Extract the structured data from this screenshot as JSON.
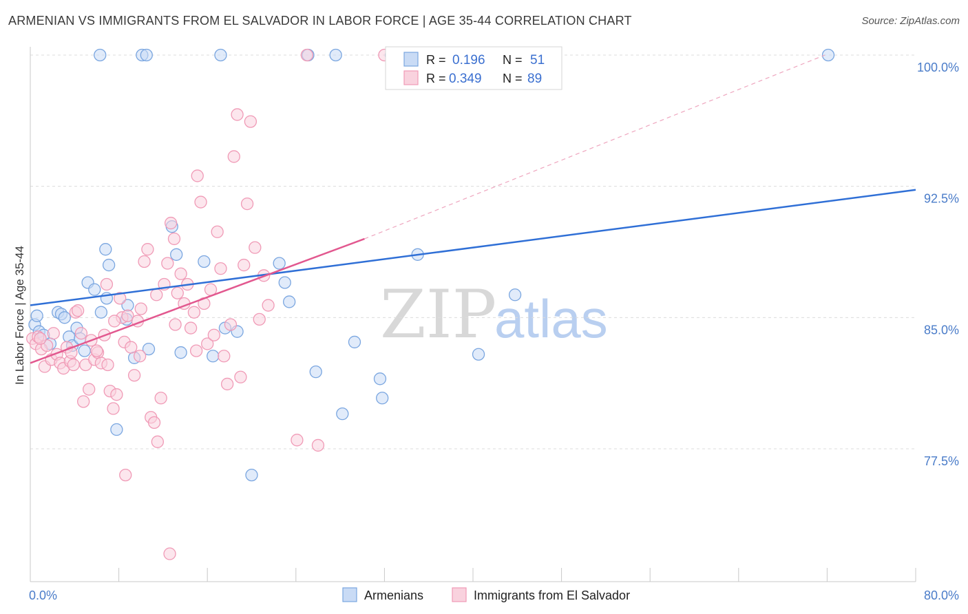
{
  "title": "ARMENIAN VS IMMIGRANTS FROM EL SALVADOR IN LABOR FORCE | AGE 35-44 CORRELATION CHART",
  "source": "Source: ZipAtlas.com",
  "watermark": {
    "zip": "ZIP",
    "atlas": "atlas"
  },
  "legend": {
    "rows": [
      {
        "r_label": "R =",
        "r_value": "0.196",
        "n_label": "N =",
        "n_value": "51"
      },
      {
        "r_label": "R =",
        "r_value": "0.349",
        "n_label": "N =",
        "n_value": "89"
      }
    ]
  },
  "bottom_legend": {
    "series1": "Armenians",
    "series2": "Immigrants from El Salvador"
  },
  "chart_data": {
    "type": "scatter",
    "title": "ARMENIAN VS IMMIGRANTS FROM EL SALVADOR IN LABOR FORCE | AGE 35-44 CORRELATION CHART",
    "xlabel": "",
    "ylabel": "In Labor Force | Age 35-44",
    "xlim": [
      0,
      80
    ],
    "ylim": [
      70.0,
      100.6
    ],
    "x_ticks": [
      "0.0%",
      "80.0%"
    ],
    "y_ticks": [
      {
        "value": 100.0,
        "label": "100.0%"
      },
      {
        "value": 92.5,
        "label": "92.5%"
      },
      {
        "value": 85.0,
        "label": "85.0%"
      },
      {
        "value": 77.5,
        "label": "77.5%"
      }
    ],
    "grid": "horizontal dashed",
    "legend_placement": "top-center",
    "series": [
      {
        "name": "Armenians",
        "color": "#7aa6e0",
        "fill": "#c9dbf5",
        "trend": {
          "x": [
            0,
            80
          ],
          "y": [
            85.7,
            92.3
          ],
          "color": "#2f6fd6"
        },
        "points": [
          [
            0.4,
            84.6
          ],
          [
            0.6,
            85.1
          ],
          [
            0.8,
            84.2
          ],
          [
            1.2,
            84.0
          ],
          [
            1.8,
            83.5
          ],
          [
            2.5,
            85.3
          ],
          [
            2.8,
            85.2
          ],
          [
            3.1,
            85.0
          ],
          [
            3.5,
            83.9
          ],
          [
            3.8,
            83.4
          ],
          [
            4.2,
            84.4
          ],
          [
            4.5,
            83.8
          ],
          [
            4.9,
            83.1
          ],
          [
            5.2,
            87.0
          ],
          [
            5.8,
            86.6
          ],
          [
            6.4,
            85.3
          ],
          [
            6.9,
            86.1
          ],
          [
            7.1,
            88.0
          ],
          [
            8.7,
            84.9
          ],
          [
            8.8,
            85.7
          ],
          [
            9.4,
            82.7
          ],
          [
            10.7,
            83.2
          ],
          [
            12.8,
            90.2
          ],
          [
            13.2,
            88.6
          ],
          [
            13.6,
            83.0
          ],
          [
            15.7,
            88.2
          ],
          [
            16.5,
            82.8
          ],
          [
            17.6,
            84.4
          ],
          [
            18.7,
            84.2
          ],
          [
            22.5,
            88.1
          ],
          [
            23.0,
            87.0
          ],
          [
            23.4,
            85.9
          ],
          [
            25.8,
            81.9
          ],
          [
            28.2,
            79.5
          ],
          [
            29.3,
            83.6
          ],
          [
            31.6,
            81.5
          ],
          [
            31.8,
            80.4
          ],
          [
            35.0,
            88.6
          ],
          [
            40.5,
            82.9
          ],
          [
            43.8,
            86.3
          ],
          [
            20.0,
            76.0
          ],
          [
            7.8,
            78.6
          ],
          [
            6.8,
            88.9
          ],
          [
            6.3,
            100.0
          ],
          [
            10.1,
            100.0
          ],
          [
            10.5,
            100.0
          ],
          [
            17.2,
            100.0
          ],
          [
            25.1,
            100.0
          ],
          [
            27.6,
            100.0
          ],
          [
            32.6,
            100.0
          ],
          [
            72.1,
            100.0
          ]
        ]
      },
      {
        "name": "Immigrants from El Salvador",
        "color": "#f09ab6",
        "fill": "#f9d2de",
        "trend": {
          "x": [
            0,
            30.2
          ],
          "y": [
            82.4,
            89.5
          ],
          "color": "#e2588f",
          "dashed_extension_to": [
            71.8,
            100.0
          ]
        },
        "points": [
          [
            0.2,
            83.8
          ],
          [
            0.5,
            83.5
          ],
          [
            0.7,
            83.9
          ],
          [
            1.0,
            83.2
          ],
          [
            1.3,
            82.2
          ],
          [
            1.5,
            83.4
          ],
          [
            1.9,
            82.6
          ],
          [
            2.1,
            84.1
          ],
          [
            2.4,
            82.9
          ],
          [
            2.7,
            82.4
          ],
          [
            3.0,
            82.1
          ],
          [
            3.3,
            83.3
          ],
          [
            3.6,
            82.5
          ],
          [
            3.9,
            82.3
          ],
          [
            4.1,
            85.3
          ],
          [
            4.3,
            85.4
          ],
          [
            4.6,
            84.1
          ],
          [
            4.8,
            80.2
          ],
          [
            5.0,
            82.3
          ],
          [
            5.3,
            80.9
          ],
          [
            5.5,
            83.7
          ],
          [
            5.8,
            82.6
          ],
          [
            6.1,
            83.0
          ],
          [
            6.4,
            82.4
          ],
          [
            6.7,
            84.0
          ],
          [
            6.9,
            86.9
          ],
          [
            7.0,
            82.3
          ],
          [
            7.2,
            80.8
          ],
          [
            7.5,
            79.8
          ],
          [
            7.8,
            80.6
          ],
          [
            8.1,
            86.1
          ],
          [
            8.3,
            85.0
          ],
          [
            8.5,
            83.6
          ],
          [
            8.8,
            85.1
          ],
          [
            9.1,
            83.3
          ],
          [
            9.4,
            81.7
          ],
          [
            9.7,
            84.8
          ],
          [
            10.0,
            85.5
          ],
          [
            10.3,
            88.2
          ],
          [
            10.6,
            88.9
          ],
          [
            10.9,
            79.3
          ],
          [
            11.2,
            79.0
          ],
          [
            11.5,
            77.9
          ],
          [
            11.8,
            80.4
          ],
          [
            12.1,
            86.9
          ],
          [
            12.4,
            88.1
          ],
          [
            12.7,
            90.4
          ],
          [
            13.0,
            89.5
          ],
          [
            13.3,
            86.4
          ],
          [
            13.6,
            87.5
          ],
          [
            13.9,
            85.8
          ],
          [
            14.2,
            86.9
          ],
          [
            14.5,
            84.4
          ],
          [
            14.8,
            85.3
          ],
          [
            15.1,
            93.1
          ],
          [
            15.4,
            91.6
          ],
          [
            15.7,
            85.8
          ],
          [
            16.0,
            83.5
          ],
          [
            16.3,
            86.6
          ],
          [
            16.6,
            84.0
          ],
          [
            16.9,
            89.9
          ],
          [
            17.2,
            87.8
          ],
          [
            17.5,
            82.8
          ],
          [
            17.8,
            81.2
          ],
          [
            18.1,
            84.6
          ],
          [
            18.4,
            94.2
          ],
          [
            18.7,
            96.6
          ],
          [
            19.0,
            81.6
          ],
          [
            19.3,
            88.0
          ],
          [
            19.6,
            91.5
          ],
          [
            19.9,
            96.2
          ],
          [
            20.3,
            89.0
          ],
          [
            20.7,
            84.9
          ],
          [
            21.1,
            87.4
          ],
          [
            21.5,
            85.7
          ],
          [
            24.1,
            78.0
          ],
          [
            26.0,
            77.7
          ],
          [
            8.6,
            76.0
          ],
          [
            12.6,
            71.5
          ],
          [
            3.7,
            83.0
          ],
          [
            9.9,
            82.8
          ],
          [
            13.1,
            84.6
          ],
          [
            15.0,
            83.1
          ],
          [
            6.0,
            83.1
          ],
          [
            0.9,
            83.8
          ],
          [
            7.6,
            84.8
          ],
          [
            11.4,
            86.3
          ],
          [
            25.0,
            100.0
          ],
          [
            32.0,
            100.0
          ]
        ]
      }
    ]
  }
}
